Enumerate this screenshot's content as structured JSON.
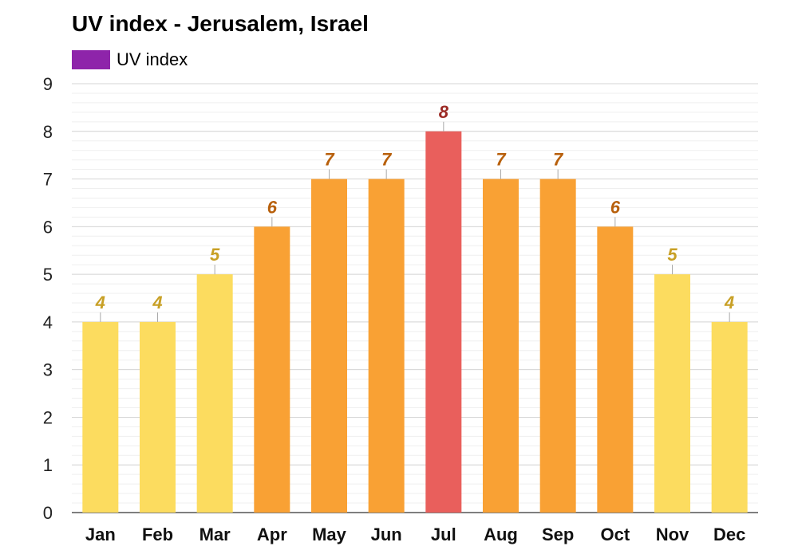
{
  "chart_data": {
    "type": "bar",
    "title": "UV index - Jerusalem, Israel",
    "categories": [
      "Jan",
      "Feb",
      "Mar",
      "Apr",
      "May",
      "Jun",
      "Jul",
      "Aug",
      "Sep",
      "Oct",
      "Nov",
      "Dec"
    ],
    "series": [
      {
        "name": "UV index",
        "values": [
          4,
          4,
          5,
          6,
          7,
          7,
          8,
          7,
          7,
          6,
          5,
          4
        ]
      }
    ],
    "ylim": [
      0,
      9
    ],
    "yticks": [
      0,
      1,
      2,
      3,
      4,
      5,
      6,
      7,
      8,
      9
    ],
    "grid": true,
    "legend_position": "top-left",
    "legend_color": "#8e24aa",
    "level_colors": {
      "moderate": {
        "bar": "#fcdc5f",
        "label": "#c8a026"
      },
      "high": {
        "bar": "#f9a134",
        "label": "#b8600c"
      },
      "very_high": {
        "bar": "#e95f5c",
        "label": "#9c2a25"
      }
    }
  }
}
